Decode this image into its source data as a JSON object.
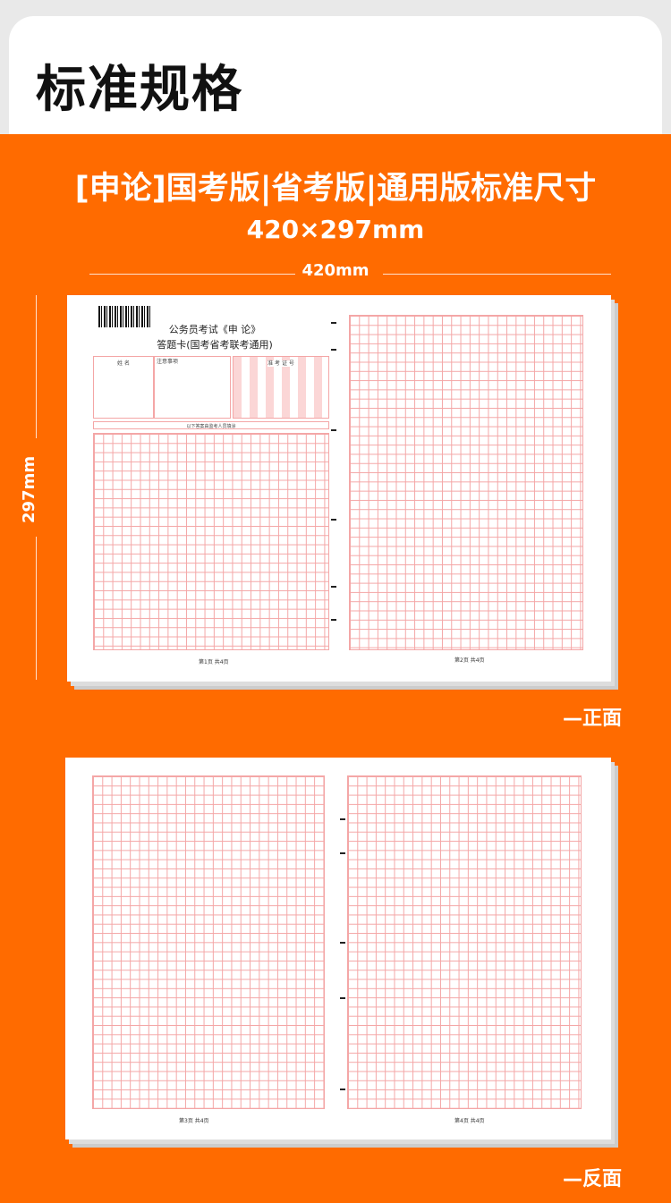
{
  "header": {
    "title": "标准规格"
  },
  "banner": {
    "subtitle": "[申论]国考版|省考版|通用版标准尺寸",
    "size": "420×297mm",
    "width_label": "420mm",
    "height_label": "297mm"
  },
  "front": {
    "label": "—正面",
    "card_title_1": "公务员考试《申 论》",
    "card_title_2": "答题卡(国考省考联考通用)",
    "name_label": "姓 名",
    "notes_label": "注意事项",
    "exam_id_label": "准 考 证 号",
    "fill_note": "以下答案由监考人员填涂",
    "page1": "第1页 共4页",
    "page2": "第2页 共4页"
  },
  "back": {
    "label": "—反面",
    "page3": "第3页 共4页",
    "page4": "第4页 共4页"
  },
  "colors": {
    "accent": "#ff6b00",
    "grid": "#f4a6a6"
  }
}
